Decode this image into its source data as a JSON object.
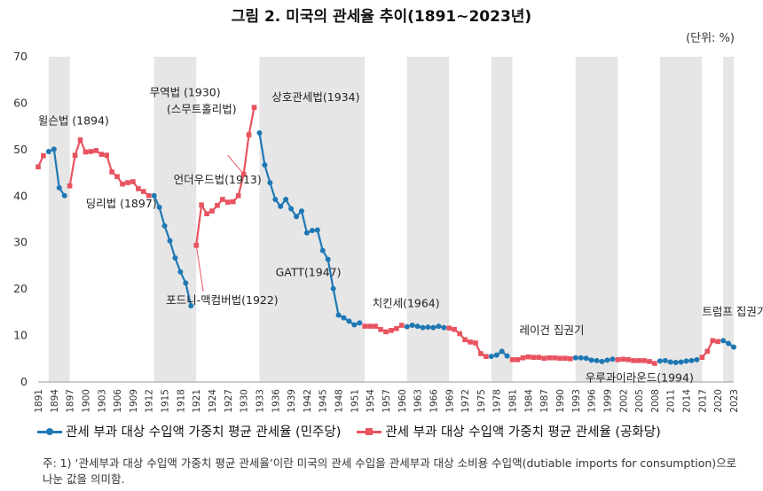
{
  "title": "그림 2. 미국의 관세율 추이(1891~2023년)",
  "unit_label": "(단위: %)",
  "legend": {
    "democratic": "관세 부과 대상 수입액 가중치 평균 관세율 (민주당)",
    "republican": "관세 부과 대상 수입액 가중치 평균 관세율 (공화당)"
  },
  "note": "주: 1) ‘관세부과 대상 수입액 가중치 평균 관세율’이란 미국의 관세 수입을 관세부과 대상 소비용 수입액(dutiable imports for consumption)으로 나눈 값을 의미함.",
  "chart_data": {
    "type": "line",
    "title": "그림 2. 미국의 관세율 추이(1891~2023년)",
    "xlabel": "",
    "ylabel": "",
    "ylim": [
      0,
      70
    ],
    "xlim": [
      1891,
      2023
    ],
    "yticks": [
      0,
      10,
      20,
      30,
      40,
      50,
      60,
      70
    ],
    "xticks": [
      1891,
      1894,
      1897,
      1900,
      1903,
      1906,
      1909,
      1912,
      1915,
      1918,
      1921,
      1924,
      1927,
      1930,
      1933,
      1936,
      1939,
      1942,
      1945,
      1948,
      1951,
      1954,
      1957,
      1960,
      1963,
      1966,
      1969,
      1972,
      1975,
      1978,
      1981,
      1984,
      1987,
      1990,
      1993,
      1996,
      1999,
      2002,
      2005,
      2008,
      2011,
      2014,
      2017,
      2020,
      2023
    ],
    "grid": false,
    "legend_position": "bottom",
    "colors": {
      "democratic": "#1f78b4",
      "republican": "#e8535f",
      "shade": "#e6e6e6"
    },
    "shaded_periods": [
      [
        1893,
        1897
      ],
      [
        1913,
        1921
      ],
      [
        1933,
        1953
      ],
      [
        1961,
        1969
      ],
      [
        1977,
        1981
      ],
      [
        1993,
        2001
      ],
      [
        2009,
        2017
      ],
      [
        2021,
        2023
      ]
    ],
    "series": [
      {
        "name": "관세 부과 대상 수입액 가중치 평균 관세율 (공화당)",
        "key": "republican",
        "segments": [
          [
            [
              1891,
              46.3
            ],
            [
              1892,
              48.7
            ]
          ],
          [
            [
              1897,
              42.2
            ],
            [
              1898,
              48.8
            ],
            [
              1899,
              52.1
            ],
            [
              1900,
              49.5
            ],
            [
              1901,
              49.6
            ],
            [
              1902,
              49.8
            ],
            [
              1903,
              49.0
            ],
            [
              1904,
              48.8
            ],
            [
              1905,
              45.2
            ],
            [
              1906,
              44.2
            ],
            [
              1907,
              42.6
            ],
            [
              1908,
              42.9
            ],
            [
              1909,
              43.1
            ],
            [
              1910,
              41.6
            ],
            [
              1911,
              41.0
            ],
            [
              1912,
              40.1
            ]
          ],
          [
            [
              1921,
              29.4
            ],
            [
              1922,
              38.1
            ],
            [
              1923,
              36.2
            ],
            [
              1924,
              36.8
            ],
            [
              1925,
              38.0
            ],
            [
              1926,
              39.3
            ],
            [
              1927,
              38.7
            ],
            [
              1928,
              38.8
            ],
            [
              1929,
              40.1
            ],
            [
              1930,
              44.7
            ],
            [
              1931,
              53.2
            ],
            [
              1932,
              59.1
            ]
          ],
          [
            [
              1953,
              12.0
            ],
            [
              1954,
              12.0
            ],
            [
              1955,
              12.0
            ],
            [
              1956,
              11.3
            ],
            [
              1957,
              10.8
            ],
            [
              1958,
              11.1
            ],
            [
              1959,
              11.5
            ],
            [
              1960,
              12.2
            ]
          ],
          [
            [
              1969,
              11.6
            ],
            [
              1970,
              11.3
            ],
            [
              1971,
              10.4
            ],
            [
              1972,
              9.1
            ],
            [
              1973,
              8.6
            ],
            [
              1974,
              8.4
            ],
            [
              1975,
              6.1
            ],
            [
              1976,
              5.5
            ]
          ],
          [
            [
              1981,
              4.8
            ],
            [
              1982,
              4.8
            ],
            [
              1983,
              5.2
            ],
            [
              1984,
              5.4
            ],
            [
              1985,
              5.3
            ],
            [
              1986,
              5.3
            ],
            [
              1987,
              5.1
            ],
            [
              1988,
              5.2
            ],
            [
              1989,
              5.2
            ],
            [
              1990,
              5.1
            ],
            [
              1991,
              5.1
            ],
            [
              1992,
              5.0
            ]
          ],
          [
            [
              2001,
              4.8
            ],
            [
              2002,
              4.9
            ],
            [
              2003,
              4.8
            ],
            [
              2004,
              4.6
            ],
            [
              2005,
              4.6
            ],
            [
              2006,
              4.6
            ],
            [
              2007,
              4.4
            ],
            [
              2008,
              4.0
            ]
          ],
          [
            [
              2017,
              5.3
            ],
            [
              2018,
              6.6
            ],
            [
              2019,
              8.9
            ],
            [
              2020,
              8.7
            ]
          ]
        ]
      },
      {
        "name": "관세 부과 대상 수입액 가중치 평균 관세율 (민주당)",
        "key": "democratic",
        "segments": [
          [
            [
              1893,
              49.6
            ],
            [
              1894,
              50.1
            ],
            [
              1895,
              41.8
            ],
            [
              1896,
              40.1
            ]
          ],
          [
            [
              1913,
              40.1
            ],
            [
              1914,
              37.6
            ],
            [
              1915,
              33.6
            ],
            [
              1916,
              30.4
            ],
            [
              1917,
              26.7
            ],
            [
              1918,
              23.7
            ],
            [
              1919,
              21.3
            ],
            [
              1920,
              16.4
            ]
          ],
          [
            [
              1933,
              53.6
            ],
            [
              1934,
              46.7
            ],
            [
              1935,
              42.9
            ],
            [
              1936,
              39.3
            ],
            [
              1937,
              37.8
            ],
            [
              1938,
              39.3
            ],
            [
              1939,
              37.3
            ],
            [
              1940,
              35.6
            ],
            [
              1941,
              36.8
            ],
            [
              1942,
              32.1
            ],
            [
              1943,
              32.6
            ],
            [
              1944,
              32.7
            ],
            [
              1945,
              28.3
            ],
            [
              1946,
              26.4
            ],
            [
              1947,
              20.1
            ],
            [
              1948,
              14.4
            ],
            [
              1949,
              13.8
            ],
            [
              1950,
              13.1
            ],
            [
              1951,
              12.3
            ],
            [
              1952,
              12.7
            ]
          ],
          [
            [
              1961,
              11.9
            ],
            [
              1962,
              12.2
            ],
            [
              1963,
              12.0
            ],
            [
              1964,
              11.7
            ],
            [
              1965,
              11.8
            ],
            [
              1966,
              11.7
            ],
            [
              1967,
              12.0
            ],
            [
              1968,
              11.7
            ]
          ],
          [
            [
              1977,
              5.5
            ],
            [
              1978,
              5.8
            ],
            [
              1979,
              6.6
            ],
            [
              1980,
              5.6
            ]
          ],
          [
            [
              1993,
              5.2
            ],
            [
              1994,
              5.2
            ],
            [
              1995,
              5.1
            ],
            [
              1996,
              4.7
            ],
            [
              1997,
              4.6
            ],
            [
              1998,
              4.4
            ],
            [
              1999,
              4.7
            ],
            [
              2000,
              4.9
            ]
          ],
          [
            [
              2009,
              4.5
            ],
            [
              2010,
              4.6
            ],
            [
              2011,
              4.3
            ],
            [
              2012,
              4.2
            ],
            [
              2013,
              4.3
            ],
            [
              2014,
              4.5
            ],
            [
              2015,
              4.6
            ],
            [
              2016,
              4.8
            ]
          ],
          [
            [
              2021,
              8.9
            ],
            [
              2022,
              8.3
            ],
            [
              2023,
              7.5
            ]
          ]
        ]
      }
    ],
    "annotations": [
      {
        "text": "윌슨법 (1894)",
        "x": 1894,
        "y": 50.1
      },
      {
        "text": "딩리법 (1897)",
        "x": 1897,
        "y": 42.2
      },
      {
        "text": "언더우드법(1913)",
        "x": 1913,
        "y": 40.1
      },
      {
        "text": "무역법 (1930)",
        "x": 1930,
        "y": 44.7
      },
      {
        "text": "(스무트홀리법)",
        "x": 1930,
        "y": 44.7
      },
      {
        "text": "포드니-맥컴버법(1922)",
        "x": 1922,
        "y": 38.1
      },
      {
        "text": "상호관세법(1934)",
        "x": 1934,
        "y": 46.7
      },
      {
        "text": "GATT(1947)",
        "x": 1947,
        "y": 20.1
      },
      {
        "text": "치킨세(1964)",
        "x": 1964,
        "y": 11.7
      },
      {
        "text": "레이건 집권기",
        "x": 1981,
        "y": 4.8
      },
      {
        "text": "우루과이라운드(1994)",
        "x": 1994,
        "y": 5.2
      },
      {
        "text": "트럼프 집권기",
        "x": 2017,
        "y": 5.3
      }
    ]
  }
}
